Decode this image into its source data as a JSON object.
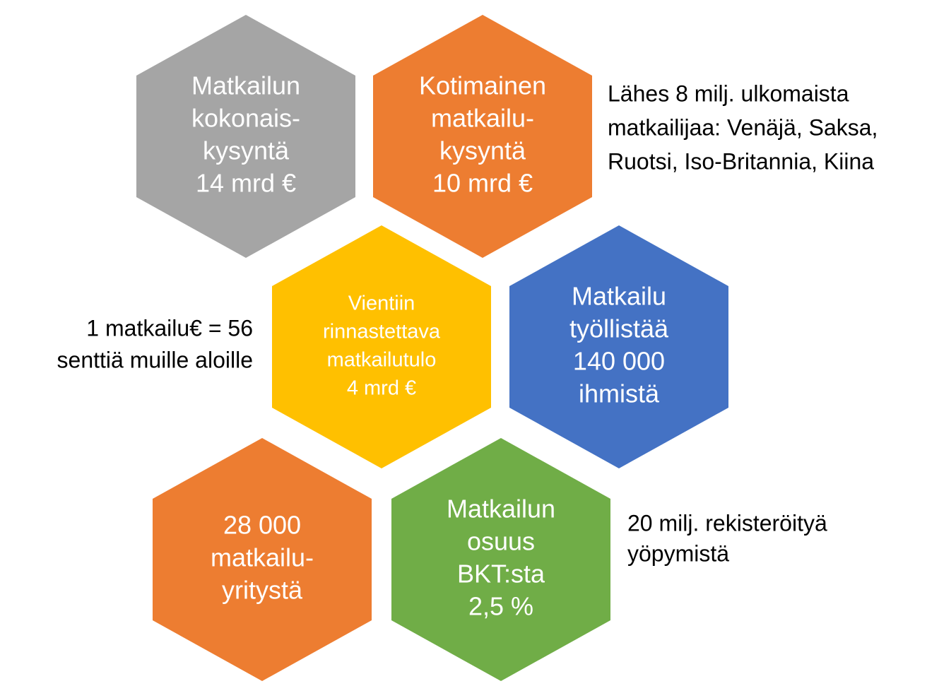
{
  "nodes": [
    {
      "lines": [
        "Matkailun",
        "kokonais-",
        "kysyntä",
        "14 mrd €"
      ],
      "color": "#a5a5a5"
    },
    {
      "lines": [
        "Kotimainen",
        "matkailu-",
        "kysyntä",
        "10 mrd €"
      ],
      "color": "#ed7d31"
    },
    {
      "lines": [
        "Vientiin",
        "rinnastettava",
        "matkailutulo",
        "4 mrd €"
      ],
      "color": "#ffc000"
    },
    {
      "lines": [
        "Matkailu",
        "työllistää",
        "140 000",
        "ihmistä"
      ],
      "color": "#4472c4"
    },
    {
      "lines": [
        "28 000",
        "matkailu-",
        "yritystä"
      ],
      "color": "#ed7d31"
    },
    {
      "lines": [
        "Matkailun",
        "osuus",
        "BKT:sta",
        "2,5 %"
      ],
      "color": "#70ad47"
    }
  ],
  "annotations": [
    {
      "lines": [
        "Lähes 8 milj. ulkomaista",
        "matkailijaa: Venäjä, Saksa,",
        "Ruotsi, Iso-Britannia, Kiina"
      ]
    },
    {
      "lines": [
        "1 matkailu€ = 56",
        "senttiä muille aloille"
      ]
    },
    {
      "lines": [
        "20 milj. rekisteröityä",
        "yöpymistä"
      ]
    }
  ]
}
